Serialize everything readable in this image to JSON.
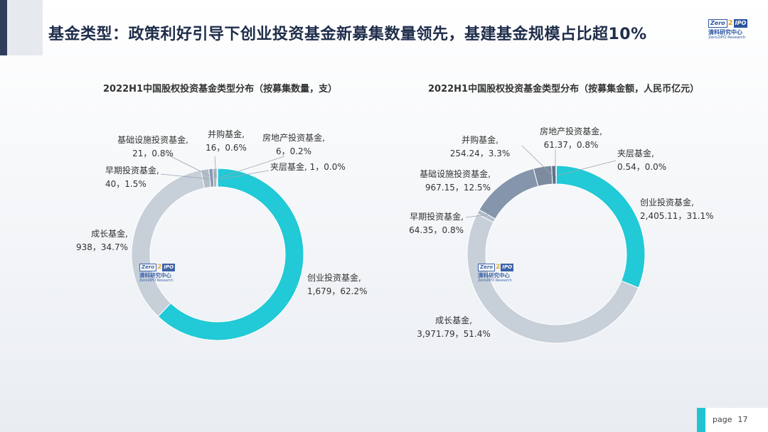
{
  "header": {
    "title": "基金类型：政策利好引导下创业投资基金新募集数量领先，基建基金规模占比超10%"
  },
  "logo": {
    "zero": "Zero",
    "two": "2",
    "ipo": "IPO",
    "cn": "清科研究中心",
    "en": "Zero2IPO Research"
  },
  "chart_data": [
    {
      "type": "pie",
      "title": "2022H1中国股权投资基金类型分布（按募集数量，支）",
      "slices": [
        {
          "name": "创业投资基金,",
          "value": 1679,
          "value_label": "1,679，62.2%",
          "percent": 62.2,
          "color": "#22c9d6"
        },
        {
          "name": "成长基金,",
          "value": 938,
          "value_label": "938，34.7%",
          "percent": 34.7,
          "color": "#c7cfd9"
        },
        {
          "name": "早期投资基金,",
          "value": 40,
          "value_label": "40，1.5%",
          "percent": 1.5,
          "color": "#b3bdc9"
        },
        {
          "name": "基础设施投资基金,",
          "value": 21,
          "value_label": "21，0.8%",
          "percent": 0.8,
          "color": "#8a9ab0"
        },
        {
          "name": "并购基金,",
          "value": 16,
          "value_label": "16，0.6%",
          "percent": 0.6,
          "color": "#a3adba"
        },
        {
          "name": "房地产投资基金,",
          "value": 6,
          "value_label": "6，0.2%",
          "percent": 0.2,
          "color": "#6b7b94"
        },
        {
          "name": "夹层基金,",
          "value": 1,
          "value_label": "1，0.0%",
          "percent": 0.0,
          "color": "#3a4a66"
        }
      ]
    },
    {
      "type": "pie",
      "title": "2022H1中国股权投资基金类型分布（按募集金额，人民币亿元）",
      "slices": [
        {
          "name": "创业投资基金,",
          "value": 2405.11,
          "value_label": "2,405.11，31.1%",
          "percent": 31.1,
          "color": "#22c9d6"
        },
        {
          "name": "成长基金,",
          "value": 3971.79,
          "value_label": "3,971.79，51.4%",
          "percent": 51.4,
          "color": "#c7cfd9"
        },
        {
          "name": "早期投资基金,",
          "value": 64.35,
          "value_label": "64.35，0.8%",
          "percent": 0.8,
          "color": "#b3bdc9"
        },
        {
          "name": "基础设施投资基金,",
          "value": 967.15,
          "value_label": "967.15，12.5%",
          "percent": 12.5,
          "color": "#8595ac"
        },
        {
          "name": "并购基金,",
          "value": 254.24,
          "value_label": "254.24，3.3%",
          "percent": 3.3,
          "color": "#7d8ba0"
        },
        {
          "name": "房地产投资基金,",
          "value": 61.37,
          "value_label": "61.37，0.8%",
          "percent": 0.8,
          "color": "#5e6e88"
        },
        {
          "name": "夹层基金,",
          "value": 0.54,
          "value_label": "0.54，0.0%",
          "percent": 0.0,
          "color": "#3a4a66"
        }
      ]
    }
  ],
  "footer": {
    "page_label": "page",
    "page_number": "17"
  }
}
